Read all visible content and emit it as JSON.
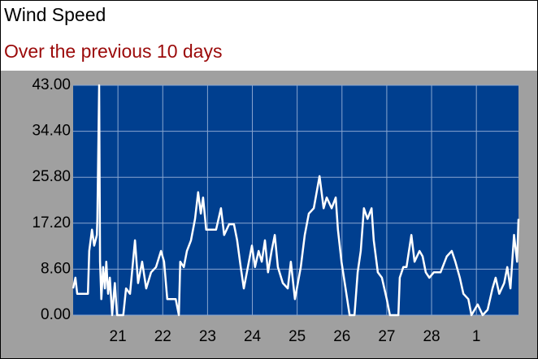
{
  "chart_data": {
    "type": "line",
    "title": "Wind Speed",
    "subtitle": "Over the previous 10 days",
    "xlim": [
      20,
      29.94
    ],
    "xticks": [
      21,
      22,
      23,
      24,
      25,
      26,
      27,
      28,
      {
        "value": 29,
        "label": "1"
      }
    ],
    "ylim": [
      0,
      43
    ],
    "yticks": [
      {
        "value": 0,
        "label": "0.00"
      },
      {
        "value": 8.6,
        "label": "8.60"
      },
      {
        "value": 17.2,
        "label": "17.20"
      },
      {
        "value": 25.8,
        "label": "25.80"
      },
      {
        "value": 34.4,
        "label": "34.40"
      },
      {
        "value": 43,
        "label": "43.00"
      }
    ],
    "grid": true,
    "series": [
      {
        "color": "#ffffff",
        "x": [
          20.0,
          20.05,
          20.09,
          20.33,
          20.36,
          20.42,
          20.47,
          20.53,
          20.54,
          20.58,
          20.6,
          20.63,
          20.67,
          20.71,
          20.74,
          20.78,
          20.82,
          20.87,
          20.93,
          20.98,
          21.12,
          21.18,
          21.27,
          21.38,
          21.45,
          21.54,
          21.63,
          21.74,
          21.85,
          21.96,
          22.03,
          22.1,
          22.29,
          22.36,
          22.39,
          22.47,
          22.54,
          22.63,
          22.72,
          22.79,
          22.85,
          22.9,
          22.97,
          23.08,
          23.19,
          23.3,
          23.37,
          23.48,
          23.59,
          23.66,
          23.74,
          23.81,
          23.9,
          23.99,
          24.06,
          24.14,
          24.21,
          24.28,
          24.35,
          24.43,
          24.5,
          24.57,
          24.68,
          24.79,
          24.86,
          24.95,
          25.08,
          25.17,
          25.26,
          25.37,
          25.5,
          25.59,
          25.66,
          25.77,
          25.86,
          25.91,
          25.99,
          26.08,
          26.17,
          26.28,
          26.35,
          26.42,
          26.49,
          26.57,
          26.66,
          26.71,
          26.8,
          26.89,
          27.0,
          27.07,
          27.26,
          27.29,
          27.37,
          27.44,
          27.55,
          27.62,
          27.73,
          27.8,
          27.87,
          27.95,
          28.05,
          28.2,
          28.34,
          28.45,
          28.53,
          28.63,
          28.71,
          28.82,
          28.89,
          29.03,
          29.14,
          29.25,
          29.36,
          29.43,
          29.51,
          29.62,
          29.69,
          29.76,
          29.84,
          29.91,
          29.94
        ],
        "values": [
          5,
          7,
          4,
          4,
          12,
          16,
          13,
          15,
          18,
          43,
          10,
          3,
          9,
          5,
          10,
          4,
          7,
          0,
          6,
          0,
          0,
          5,
          4,
          14,
          6,
          10,
          5,
          8,
          9,
          12,
          10,
          3,
          3,
          0,
          10,
          9,
          12,
          14,
          18,
          23,
          19,
          22,
          16,
          16,
          16,
          20,
          15,
          17,
          17,
          14,
          9,
          5,
          9,
          13,
          9,
          12,
          10,
          14,
          8,
          12,
          15,
          9,
          6,
          5,
          10,
          3,
          9,
          15,
          19,
          20,
          26,
          20,
          22,
          20,
          22,
          16,
          10,
          5,
          0,
          0,
          8,
          12,
          20,
          18,
          20,
          14,
          8,
          7,
          3,
          0,
          0,
          7,
          9,
          9,
          15,
          10,
          12,
          11,
          8,
          7,
          8,
          8,
          11,
          12,
          10,
          7,
          4,
          3,
          0,
          2,
          0,
          1,
          5,
          7,
          4,
          6,
          9,
          5,
          15,
          10,
          18
        ]
      }
    ]
  }
}
